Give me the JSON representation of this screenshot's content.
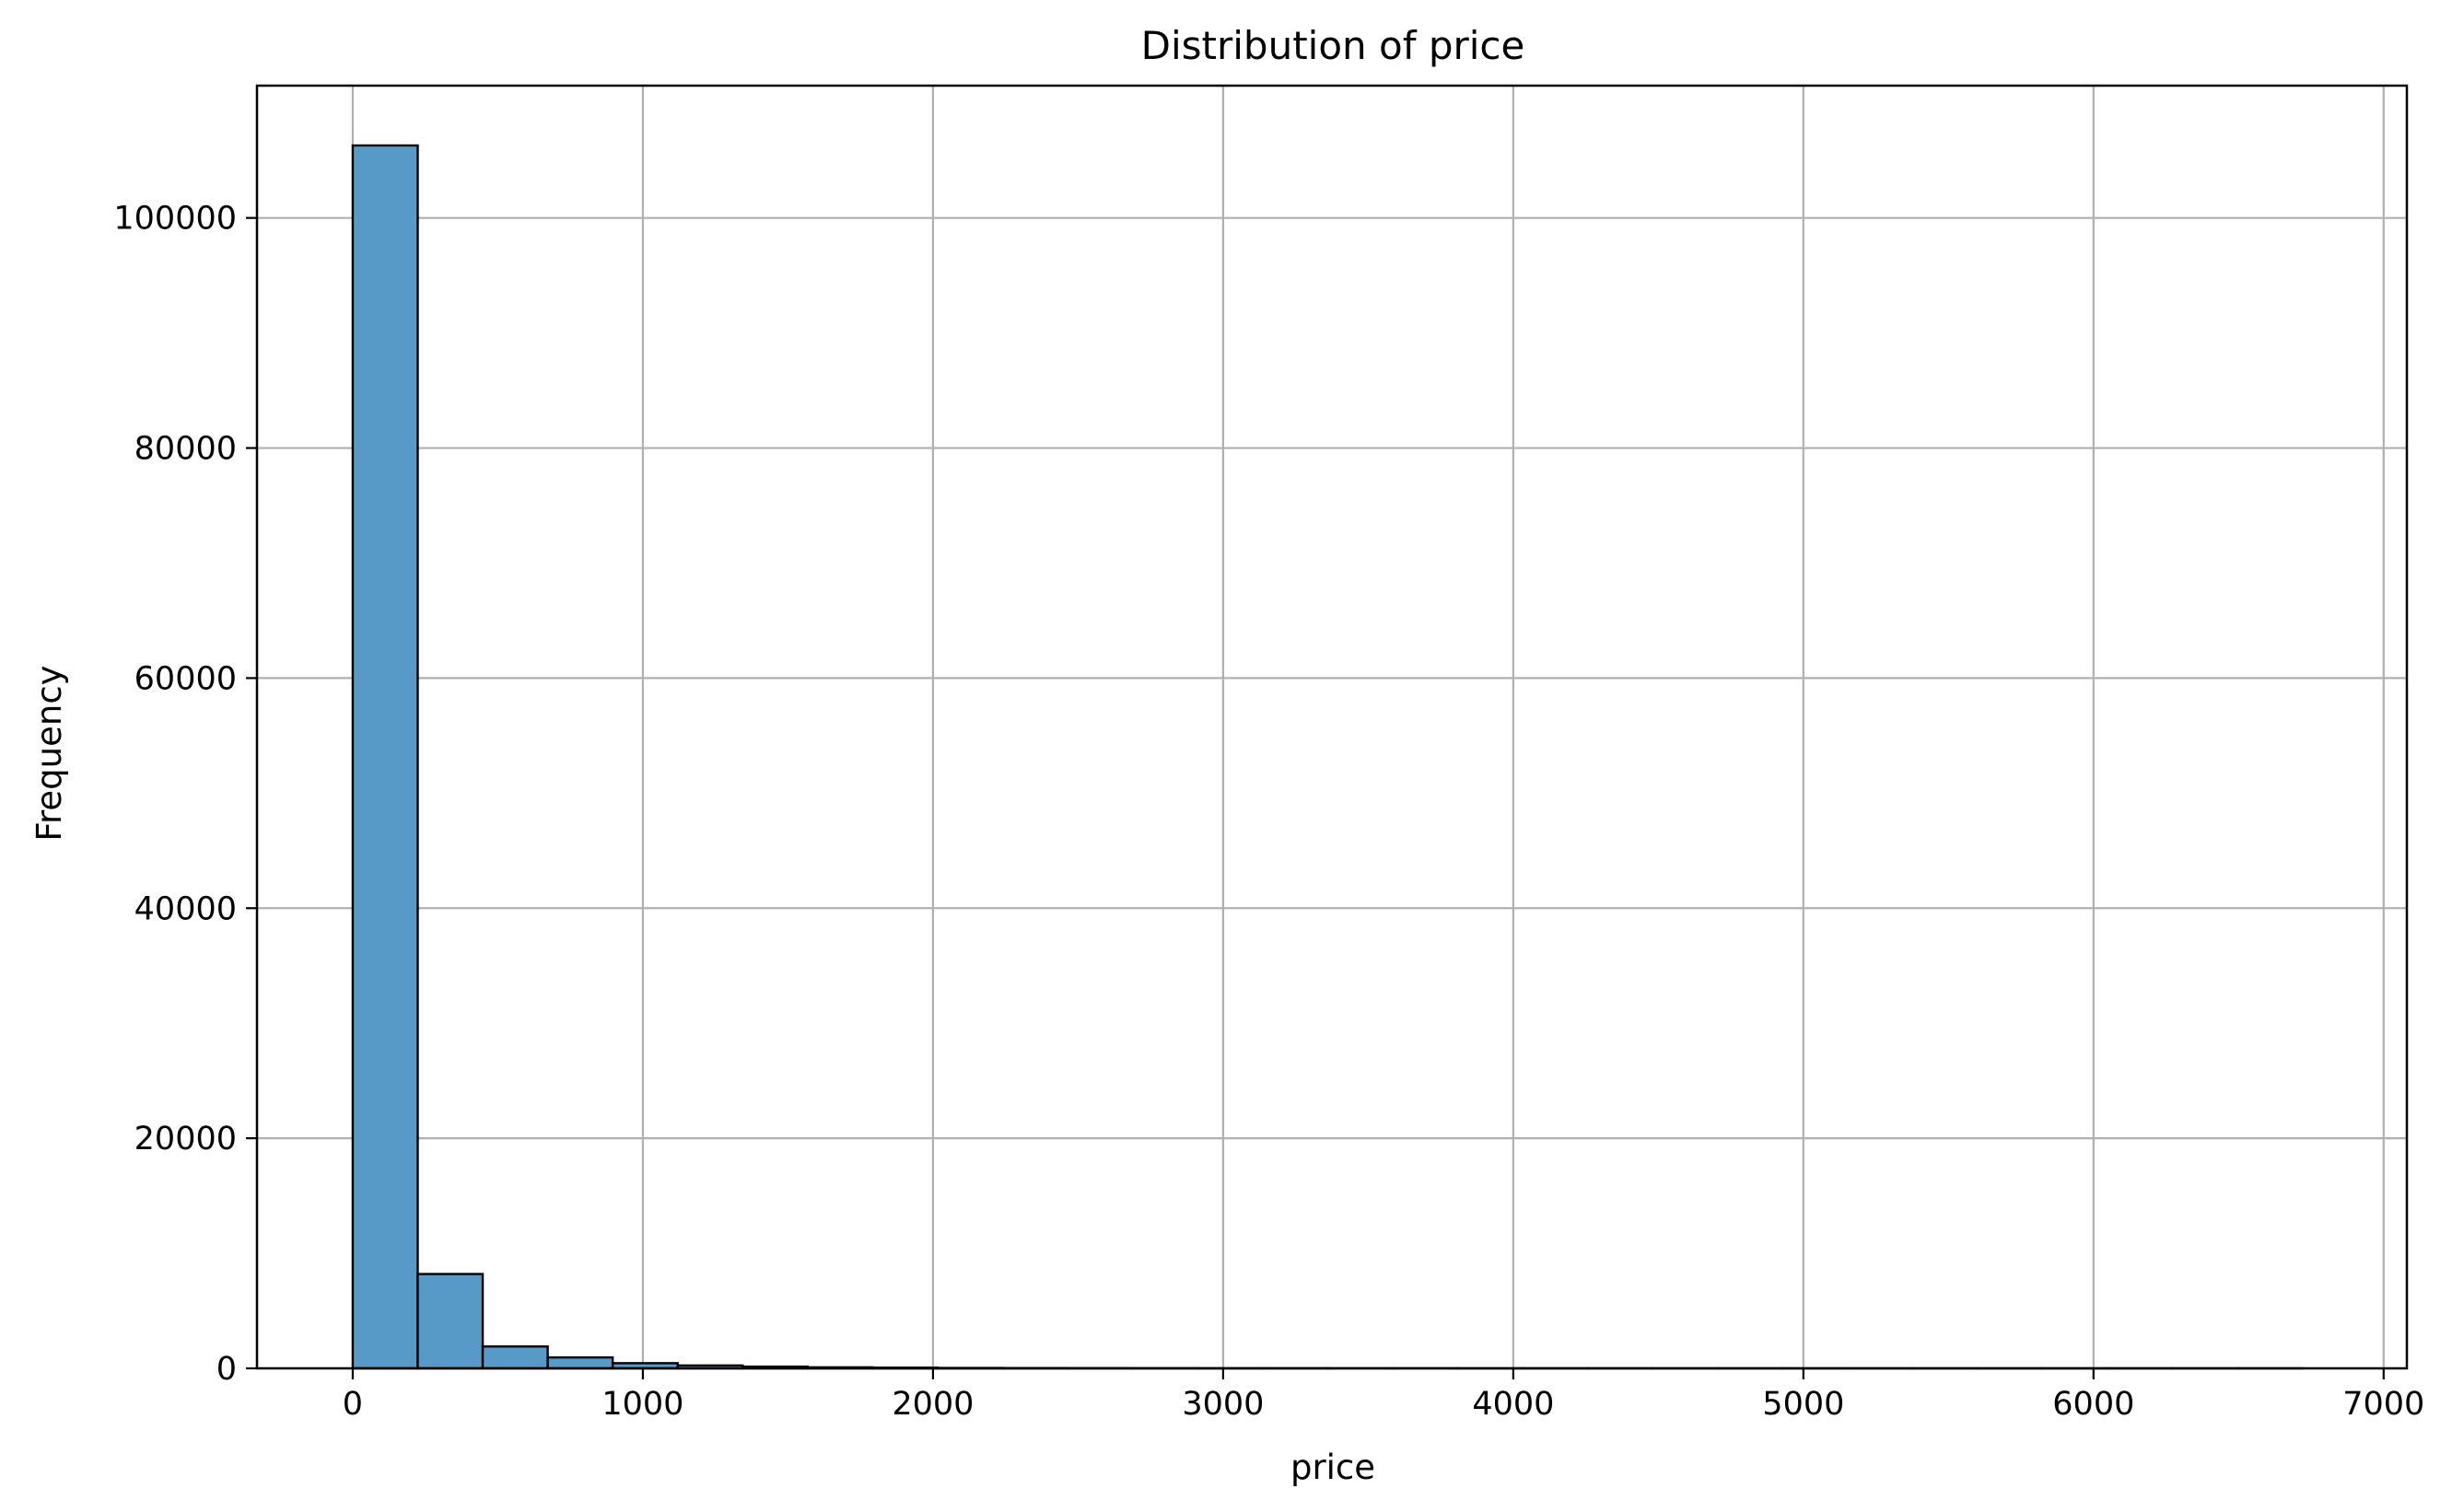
{
  "chart_data": {
    "type": "bar",
    "title": "Distribution of price",
    "xlabel": "price",
    "ylabel": "Frequency",
    "xlim": [
      -330,
      7080
    ],
    "ylim": [
      0,
      111500
    ],
    "x_ticks": [
      {
        "value": 0,
        "label": "0"
      },
      {
        "value": 1000,
        "label": "1000"
      },
      {
        "value": 2000,
        "label": "2000"
      },
      {
        "value": 3000,
        "label": "3000"
      },
      {
        "value": 4000,
        "label": "4000"
      },
      {
        "value": 5000,
        "label": "5000"
      },
      {
        "value": 6000,
        "label": "6000"
      },
      {
        "value": 7000,
        "label": "7000"
      }
    ],
    "y_ticks": [
      {
        "value": 0,
        "label": "0"
      },
      {
        "value": 20000,
        "label": "20000"
      },
      {
        "value": 40000,
        "label": "40000"
      },
      {
        "value": 60000,
        "label": "60000"
      },
      {
        "value": 80000,
        "label": "80000"
      },
      {
        "value": 100000,
        "label": "100000"
      }
    ],
    "grid": true,
    "bar_color": "#5799c7",
    "edge_color": "#000000",
    "grid_color": "#b0b0b0",
    "bins": [
      {
        "start": 0,
        "end": 224,
        "count": 106300
      },
      {
        "start": 224,
        "end": 448,
        "count": 8200
      },
      {
        "start": 448,
        "end": 672,
        "count": 1900
      },
      {
        "start": 672,
        "end": 896,
        "count": 950
      },
      {
        "start": 896,
        "end": 1120,
        "count": 450
      },
      {
        "start": 1120,
        "end": 1344,
        "count": 250
      },
      {
        "start": 1344,
        "end": 1568,
        "count": 150
      },
      {
        "start": 1568,
        "end": 1792,
        "count": 90
      },
      {
        "start": 1792,
        "end": 2016,
        "count": 60
      },
      {
        "start": 2016,
        "end": 2240,
        "count": 35
      },
      {
        "start": 2240,
        "end": 2464,
        "count": 25
      },
      {
        "start": 2464,
        "end": 2688,
        "count": 18
      },
      {
        "start": 2688,
        "end": 2912,
        "count": 14
      },
      {
        "start": 2912,
        "end": 3136,
        "count": 10
      },
      {
        "start": 3136,
        "end": 3360,
        "count": 8
      },
      {
        "start": 3360,
        "end": 3584,
        "count": 6
      },
      {
        "start": 3584,
        "end": 3808,
        "count": 5
      },
      {
        "start": 3808,
        "end": 4032,
        "count": 4
      },
      {
        "start": 4032,
        "end": 4256,
        "count": 3
      },
      {
        "start": 4256,
        "end": 4480,
        "count": 3
      },
      {
        "start": 4480,
        "end": 4704,
        "count": 2
      },
      {
        "start": 4704,
        "end": 4928,
        "count": 2
      },
      {
        "start": 4928,
        "end": 5152,
        "count": 2
      },
      {
        "start": 5152,
        "end": 5376,
        "count": 1
      },
      {
        "start": 5376,
        "end": 5600,
        "count": 1
      },
      {
        "start": 5600,
        "end": 5824,
        "count": 1
      },
      {
        "start": 5824,
        "end": 6048,
        "count": 1
      },
      {
        "start": 6048,
        "end": 6272,
        "count": 1
      },
      {
        "start": 6272,
        "end": 6496,
        "count": 1
      },
      {
        "start": 6496,
        "end": 6720,
        "count": 1
      }
    ]
  }
}
